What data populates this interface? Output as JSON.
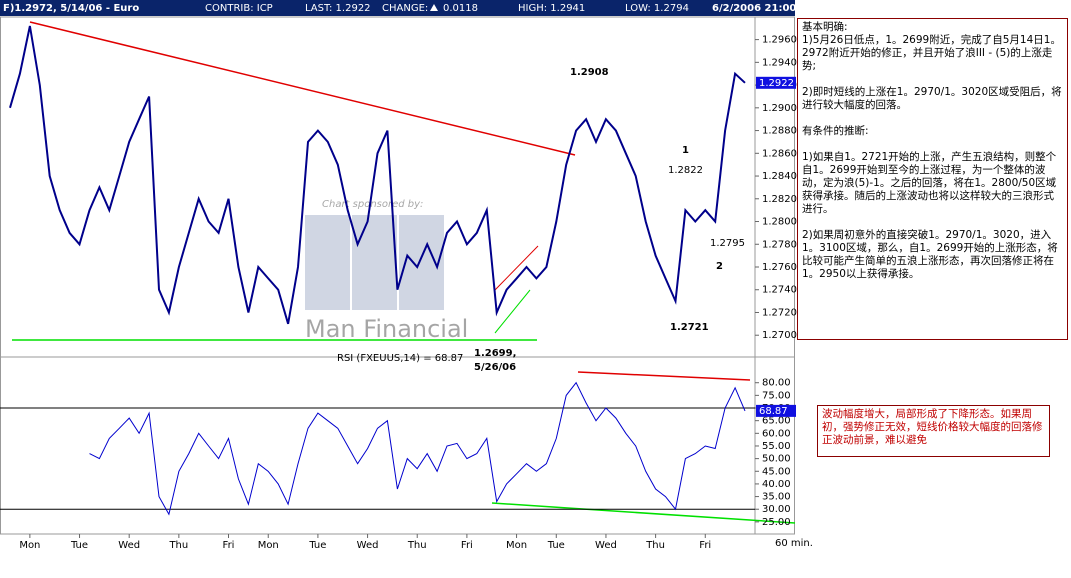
{
  "header": {
    "title": "F)1.2972, 5/14/06 - Euro",
    "contrib": "CONTRIB: ICP",
    "last": "LAST: 1.2922",
    "change_label": "CHANGE:",
    "change": "0.0118",
    "high": "HIGH: 1.2941",
    "low": "LOW: 1.2794",
    "datetime": "6/2/2006 21:00"
  },
  "chart_data": [
    {
      "type": "line",
      "color": "#00008b",
      "xlim": [
        0,
        74
      ],
      "ylim": [
        1.2687,
        1.2979
      ],
      "yticks": [
        {
          "value": 1.27,
          "label": "1.2700"
        },
        {
          "value": 1.272,
          "label": "1.2720"
        },
        {
          "value": 1.274,
          "label": "1.2740"
        },
        {
          "value": 1.276,
          "label": "1.2760"
        },
        {
          "value": 1.278,
          "label": "1.2780"
        },
        {
          "value": 1.28,
          "label": "1.2800"
        },
        {
          "value": 1.282,
          "label": "1.2820"
        },
        {
          "value": 1.284,
          "label": "1.2840"
        },
        {
          "value": 1.286,
          "label": "1.2860"
        },
        {
          "value": 1.288,
          "label": "1.2880"
        },
        {
          "value": 1.29,
          "label": "1.2900"
        },
        {
          "value": 1.292,
          "label": "1.2920"
        },
        {
          "value": 1.294,
          "label": "1.2940"
        },
        {
          "value": 1.296,
          "label": "1.2960"
        }
      ],
      "values": [
        1.29,
        1.293,
        1.2972,
        1.292,
        1.284,
        1.281,
        1.279,
        1.278,
        1.281,
        1.283,
        1.281,
        1.284,
        1.287,
        1.289,
        1.291,
        1.274,
        1.272,
        1.276,
        1.279,
        1.282,
        1.28,
        1.279,
        1.282,
        1.276,
        1.272,
        1.276,
        1.275,
        1.274,
        1.271,
        1.276,
        1.287,
        1.288,
        1.287,
        1.285,
        1.281,
        1.278,
        1.28,
        1.286,
        1.288,
        1.274,
        1.277,
        1.276,
        1.278,
        1.276,
        1.279,
        1.28,
        1.278,
        1.279,
        1.281,
        1.272,
        1.274,
        1.275,
        1.276,
        1.275,
        1.276,
        1.28,
        1.285,
        1.288,
        1.289,
        1.287,
        1.289,
        1.288,
        1.286,
        1.284,
        1.28,
        1.277,
        1.275,
        1.273,
        1.281,
        1.28,
        1.281,
        1.28,
        1.288,
        1.293,
        1.2922
      ],
      "last_value_label": "1.2922",
      "annotations": [
        "1.2908",
        "1",
        "1.2822",
        "1.2795",
        "2",
        "1.2721",
        "1.2699,",
        "5/26/06"
      ],
      "watermark": [
        "Chart sponsored by:",
        "Man Financial"
      ]
    },
    {
      "type": "line",
      "color": "#0000cd",
      "title": "RSI (FXEUUS,14) = 68.87",
      "xlim": [
        0,
        74
      ],
      "ylim": [
        21,
        87
      ],
      "yticks": [
        {
          "value": 25,
          "label": "25.00"
        },
        {
          "value": 30,
          "label": "30.00"
        },
        {
          "value": 35,
          "label": "35.00"
        },
        {
          "value": 40,
          "label": "40.00"
        },
        {
          "value": 45,
          "label": "45.00"
        },
        {
          "value": 50,
          "label": "50.00"
        },
        {
          "value": 55,
          "label": "55.00"
        },
        {
          "value": 60,
          "label": "60.00"
        },
        {
          "value": 65,
          "label": "65.00"
        },
        {
          "value": 70,
          "label": "70.00"
        },
        {
          "value": 75,
          "label": "75.00"
        },
        {
          "value": 80,
          "label": "80.00"
        }
      ],
      "values": [
        null,
        null,
        null,
        null,
        null,
        null,
        null,
        null,
        52,
        50,
        58,
        62,
        66,
        60,
        68,
        35,
        28,
        45,
        52,
        60,
        55,
        50,
        58,
        42,
        32,
        48,
        45,
        40,
        32,
        48,
        62,
        68,
        65,
        62,
        55,
        48,
        54,
        62,
        65,
        38,
        50,
        46,
        52,
        45,
        55,
        56,
        50,
        52,
        58,
        33,
        40,
        44,
        48,
        45,
        48,
        58,
        75,
        80,
        72,
        65,
        70,
        66,
        60,
        55,
        45,
        38,
        35,
        30,
        50,
        52,
        55,
        54,
        70,
        78,
        68.87
      ],
      "last_value_label": "68.87",
      "xticks": [
        {
          "value": 2,
          "label": "Mon"
        },
        {
          "value": 7,
          "label": "Tue"
        },
        {
          "value": 12,
          "label": "Wed"
        },
        {
          "value": 17,
          "label": "Thu"
        },
        {
          "value": 22,
          "label": "Fri"
        },
        {
          "value": 26,
          "label": "Mon"
        },
        {
          "value": 31,
          "label": "Tue"
        },
        {
          "value": 36,
          "label": "Wed"
        },
        {
          "value": 41,
          "label": "Thu"
        },
        {
          "value": 46,
          "label": "Fri"
        },
        {
          "value": 51,
          "label": "Mon"
        },
        {
          "value": 55,
          "label": "Tue"
        },
        {
          "value": 60,
          "label": "Wed"
        },
        {
          "value": 65,
          "label": "Thu"
        },
        {
          "value": 70,
          "label": "Fri"
        }
      ],
      "interval_label": "60 min."
    }
  ],
  "notes": {
    "heading1": "基本明确:",
    "p1": "1)5月26日低点，1。2699附近，完成了自5月14日1。2972附近开始的修正，并且开始了浪III - (5)的上涨走势;",
    "p2": "2)即时短线的上涨在1。2970/1。3020区域受阻后，将进行较大幅度的回落。",
    "heading2": "有条件的推断:",
    "p3": "1)如果自1。2721开始的上涨，产生五浪结构，则整个自1。2699开始到至今的上涨过程，为一个整体的波动，定为浪(5)-1。之后的回落，将在1。2800/50区域获得承接。随后的上涨波动也将以这样较大的三浪形式进行。",
    "p4": "2)如果周初意外的直接突破1。2970/1。3020，进入1。3100区域，那么，自1。2699开始的上涨形态，将比较可能产生简单的五浪上涨形态，再次回落修正将在1。2950以上获得承接。",
    "box2": "波动幅度增大，局部形成了下降形态。如果周初，强势修正无效，短线价格较大幅度的回落修正波动前景，难以避免"
  }
}
